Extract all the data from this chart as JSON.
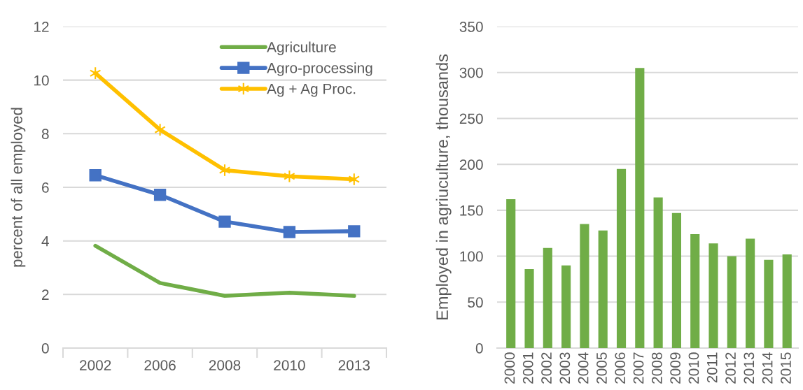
{
  "chart_data": [
    {
      "type": "line",
      "ylabel": "percent of all employed",
      "categories": [
        "2002",
        "2006",
        "2008",
        "2010",
        "2013"
      ],
      "series": [
        {
          "name": "Agriculture",
          "color": "#70ad47",
          "marker": "none",
          "values": [
            3.82,
            2.43,
            1.95,
            2.07,
            1.95
          ]
        },
        {
          "name": "Agro-processing",
          "color": "#4472c4",
          "marker": "square",
          "values": [
            6.45,
            5.72,
            4.72,
            4.33,
            4.36
          ]
        },
        {
          "name": "Ag + Ag Proc.",
          "color": "#ffc000",
          "marker": "cross",
          "values": [
            10.26,
            8.15,
            6.64,
            6.41,
            6.3
          ]
        }
      ],
      "ylim": [
        0,
        12
      ],
      "yticks": [
        0,
        2,
        4,
        6,
        8,
        10,
        12
      ],
      "grid": "y",
      "legend": "top right"
    },
    {
      "type": "bar",
      "ylabel": "Employed in agriuculture, thousands",
      "categories": [
        "2000",
        "2001",
        "2002",
        "2003",
        "2004",
        "2005",
        "2006",
        "2007",
        "2008",
        "2009",
        "2010",
        "2011",
        "2012",
        "2013",
        "2014",
        "2015"
      ],
      "color": "#70ad47",
      "values": [
        162,
        86,
        109,
        90,
        135,
        128,
        195,
        305,
        164,
        147,
        124,
        114,
        100,
        119,
        96,
        102
      ],
      "ylim": [
        0,
        350
      ],
      "yticks": [
        0,
        50,
        100,
        150,
        200,
        250,
        300,
        350
      ],
      "grid": "y"
    }
  ]
}
